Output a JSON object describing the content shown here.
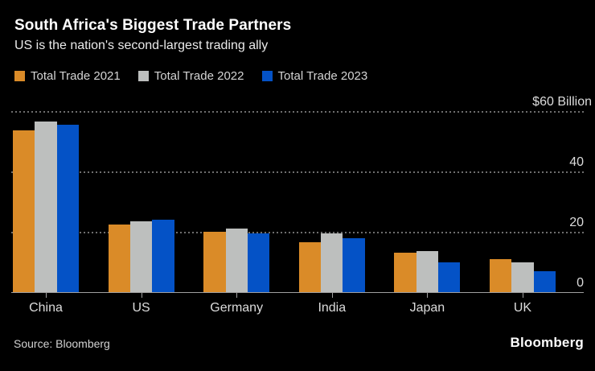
{
  "header": {
    "title": "South Africa's Biggest Trade Partners",
    "subtitle": "US is the nation's second-largest trading ally"
  },
  "footer": {
    "source": "Source: Bloomberg",
    "logo": "Bloomberg"
  },
  "colors": {
    "background": "#000000",
    "gridline": "#6E6E6E",
    "axis_line": "#A0A0A0",
    "title_text": "#FFFFFF",
    "secondary_text": "#D4D4D4"
  },
  "chart_data": {
    "type": "bar",
    "title": "South Africa's Biggest Trade Partners",
    "subtitle": "US is the nation's second-largest trading ally",
    "unit": "$ Billion",
    "categories": [
      "China",
      "US",
      "Germany",
      "India",
      "Japan",
      "UK"
    ],
    "series": [
      {
        "name": "Total Trade 2021",
        "color": "#DA8B28",
        "values": [
          53.5,
          22.5,
          20,
          16.5,
          13,
          11
        ]
      },
      {
        "name": "Total Trade 2022",
        "color": "#BDBFBE",
        "values": [
          56.5,
          23.5,
          21,
          19.5,
          13.5,
          10
        ]
      },
      {
        "name": "Total Trade 2023",
        "color": "#0452C6",
        "values": [
          55.5,
          24,
          19.5,
          18,
          10,
          7
        ]
      }
    ],
    "ylim": [
      0,
      60
    ],
    "y_ticks": [
      {
        "value": 60,
        "label": "$60 Billion"
      },
      {
        "value": 40,
        "label": "40"
      },
      {
        "value": 20,
        "label": "20"
      },
      {
        "value": 0,
        "label": "0"
      }
    ],
    "grid": "horizontal dotted at 20/40/60, solid axis line at 0",
    "legend_position": "top-left"
  }
}
